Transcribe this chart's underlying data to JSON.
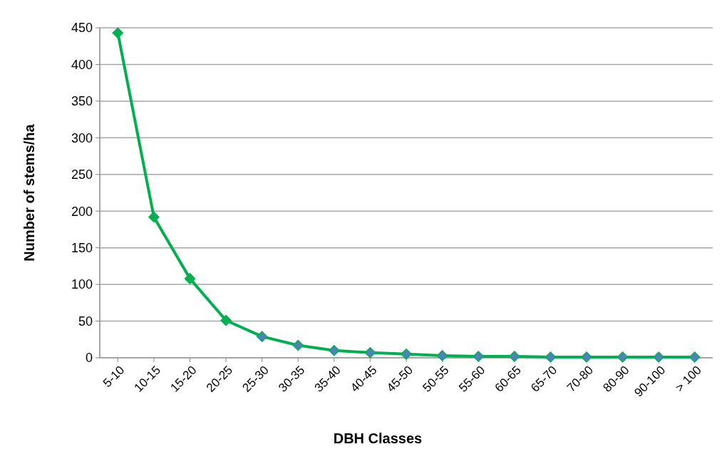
{
  "chart_data": {
    "type": "line",
    "xlabel": "DBH Classes",
    "ylabel": "Number of stems/ha",
    "categories": [
      "5-10",
      "10-15",
      "15-20",
      "20-25",
      "25-30",
      "30-35",
      "35-40",
      "40-45",
      "45-50",
      "50-55",
      "55-60",
      "60-65",
      "65-70",
      "70-80",
      "80-90",
      "90-100",
      "> 100"
    ],
    "series": [
      {
        "color": "#00b050",
        "values": [
          443,
          192,
          108,
          51,
          29,
          17,
          10,
          7,
          5,
          3,
          2,
          2,
          1,
          1,
          1,
          1,
          1
        ],
        "colors": [
          "#00b050",
          "#00b050",
          "#00b050",
          "#00b050",
          "#4f81bd",
          "#4f81bd",
          "#4f81bd",
          "#4f81bd",
          "#4f81bd",
          "#4f81bd",
          "#4f81bd",
          "#4f81bd",
          "#4f81bd",
          "#4f81bd",
          "#4f81bd",
          "#4f81bd",
          "#4f81bd"
        ]
      }
    ],
    "ylim": [
      0,
      450
    ],
    "yticks": [
      0,
      50,
      100,
      150,
      200,
      250,
      300,
      350,
      400,
      450
    ],
    "grid": "y",
    "marker": "diamond",
    "line_style": "solid"
  }
}
